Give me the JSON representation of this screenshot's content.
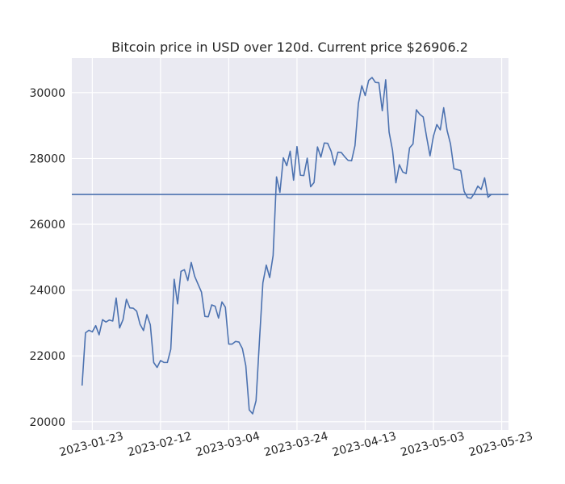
{
  "chart_data": {
    "type": "line",
    "title": "Bitcoin price in USD over 120d. Current price $26906.2",
    "xlabel": "",
    "ylabel": "",
    "x_ticks": [
      "2023-01-23",
      "2023-02-12",
      "2023-03-04",
      "2023-03-24",
      "2023-04-13",
      "2023-05-03",
      "2023-05-23"
    ],
    "y_ticks": [
      20000,
      22000,
      24000,
      26000,
      28000,
      30000
    ],
    "xlim": [
      "2023-01-17",
      "2023-05-25"
    ],
    "ylim": [
      19750,
      31050
    ],
    "grid": true,
    "colors": {
      "line": "#4c72b0",
      "background": "#eaeaf2",
      "grid": "#ffffff"
    },
    "reference_line": {
      "y": 26906.2
    },
    "series": [
      {
        "x_start": "2023-01-20",
        "values": [
          21100,
          22700,
          22780,
          22730,
          22920,
          22640,
          23100,
          23030,
          23090,
          23060,
          23760,
          22850,
          23100,
          23720,
          23460,
          23450,
          23360,
          22960,
          22770,
          23250,
          22950,
          21800,
          21650,
          21860,
          21800,
          21800,
          22200,
          24330,
          23580,
          24570,
          24620,
          24290,
          24840,
          24420,
          24180,
          23940,
          23200,
          23190,
          23550,
          23510,
          23150,
          23640,
          23480,
          22360,
          22360,
          22440,
          22420,
          22220,
          21700,
          20360,
          20240,
          20640,
          22470,
          24220,
          24760,
          24380,
          25050,
          27440,
          26970,
          28020,
          27780,
          28220,
          27340,
          28360,
          27490,
          27480,
          28010,
          27140,
          27270,
          28350,
          28040,
          28470,
          28460,
          28220,
          27800,
          28190,
          28180,
          28050,
          27940,
          27930,
          28390,
          29670,
          30210,
          29910,
          30370,
          30460,
          30310,
          30300,
          29450,
          30390,
          28800,
          28250,
          27260,
          27810,
          27590,
          27540,
          28320,
          28440,
          29480,
          29340,
          29260,
          28650,
          28080,
          28680,
          29030,
          28870,
          29540,
          28850,
          28440,
          27690,
          27660,
          27630,
          27000,
          26810,
          26790,
          26940,
          27160,
          27060,
          27410,
          26820,
          26910
        ]
      }
    ]
  }
}
